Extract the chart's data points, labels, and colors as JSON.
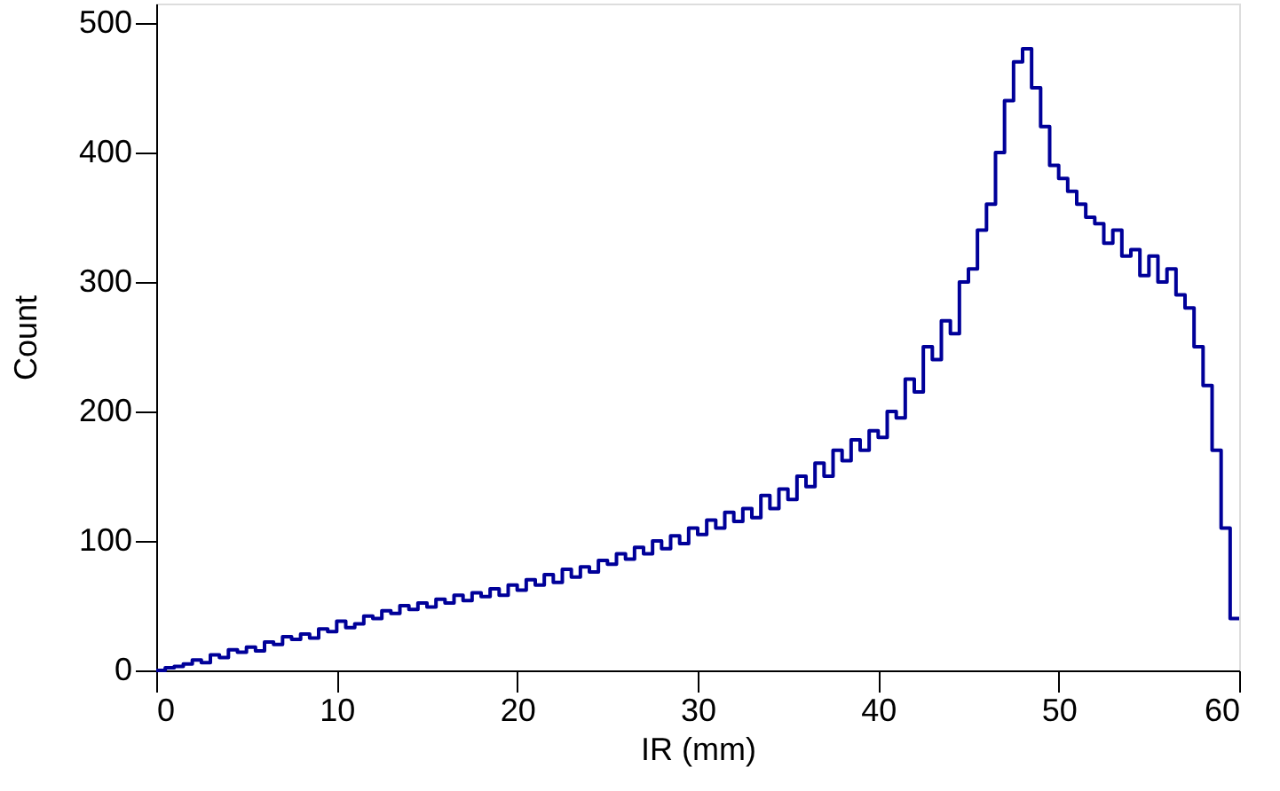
{
  "chart_data": {
    "type": "step",
    "xlabel": "IR (mm)",
    "ylabel": "Count",
    "xlim": [
      0,
      60
    ],
    "ylim": [
      0,
      515
    ],
    "xticks": [
      0,
      10,
      20,
      30,
      40,
      50,
      60
    ],
    "yticks": [
      0,
      100,
      200,
      300,
      400,
      500
    ],
    "grid": false,
    "x": [
      0,
      0.5,
      1,
      1.5,
      2,
      2.5,
      3,
      3.5,
      4,
      4.5,
      5,
      5.5,
      6,
      6.5,
      7,
      7.5,
      8,
      8.5,
      9,
      9.5,
      10,
      10.5,
      11,
      11.5,
      12,
      12.5,
      13,
      13.5,
      14,
      14.5,
      15,
      15.5,
      16,
      16.5,
      17,
      17.5,
      18,
      18.5,
      19,
      19.5,
      20,
      20.5,
      21,
      21.5,
      22,
      22.5,
      23,
      23.5,
      24,
      24.5,
      25,
      25.5,
      26,
      26.5,
      27,
      27.5,
      28,
      28.5,
      29,
      29.5,
      30,
      30.5,
      31,
      31.5,
      32,
      32.5,
      33,
      33.5,
      34,
      34.5,
      35,
      35.5,
      36,
      36.5,
      37,
      37.5,
      38,
      38.5,
      39,
      39.5,
      40,
      40.5,
      41,
      41.5,
      42,
      42.5,
      43,
      43.5,
      44,
      44.5,
      45,
      45.5,
      46,
      46.5,
      47,
      47.5,
      48,
      48.5,
      49,
      49.5,
      50,
      50.5,
      51,
      51.5,
      52,
      52.5,
      53,
      53.5,
      54,
      54.5,
      55,
      55.5,
      56,
      56.5,
      57,
      57.5,
      58,
      58.5,
      59,
      59.5,
      60
    ],
    "series": [
      {
        "color": "#000099",
        "values": [
          0,
          2,
          3,
          5,
          8,
          6,
          12,
          10,
          16,
          14,
          18,
          15,
          22,
          20,
          26,
          24,
          28,
          25,
          32,
          30,
          38,
          33,
          36,
          42,
          40,
          46,
          44,
          50,
          47,
          52,
          49,
          55,
          52,
          58,
          54,
          60,
          57,
          63,
          58,
          66,
          62,
          70,
          66,
          74,
          68,
          78,
          72,
          80,
          76,
          85,
          82,
          90,
          86,
          95,
          90,
          100,
          94,
          104,
          98,
          110,
          105,
          116,
          110,
          122,
          115,
          125,
          118,
          135,
          125,
          140,
          132,
          150,
          142,
          160,
          150,
          170,
          162,
          178,
          170,
          185,
          180,
          200,
          195,
          225,
          215,
          250,
          240,
          270,
          260,
          300,
          310,
          340,
          360,
          400,
          440,
          470,
          480,
          450,
          420,
          390,
          380,
          370,
          360,
          350,
          345,
          330,
          340,
          320,
          325,
          305,
          320,
          300,
          310,
          290,
          280,
          250,
          220,
          170,
          110,
          40,
          40
        ]
      }
    ]
  }
}
